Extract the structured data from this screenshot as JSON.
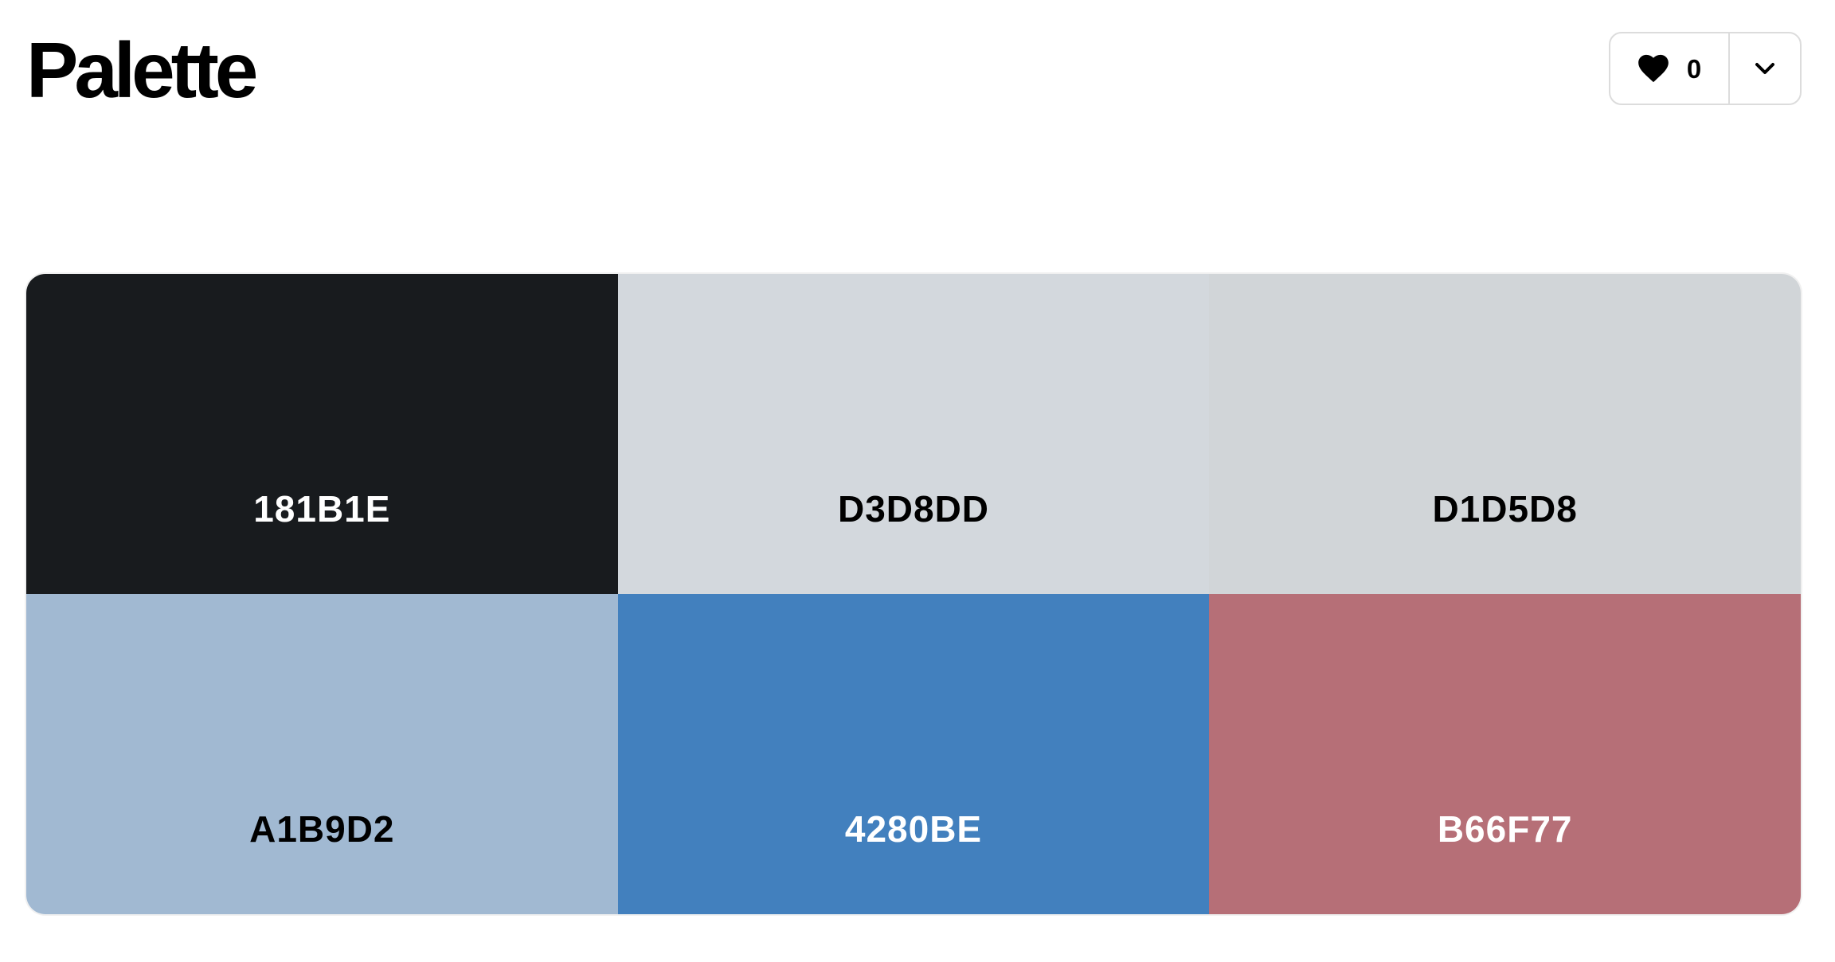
{
  "header": {
    "title": "Palette",
    "likes": {
      "count": "0",
      "icon": "heart-icon"
    },
    "menu": {
      "icon": "chevron-down-icon"
    }
  },
  "palette": {
    "swatches": [
      {
        "hex": "181B1E",
        "color": "#181B1E",
        "text_color": "#ffffff"
      },
      {
        "hex": "D3D8DD",
        "color": "#D3D8DD",
        "text_color": "#000000"
      },
      {
        "hex": "D1D5D8",
        "color": "#D1D5D8",
        "text_color": "#000000"
      },
      {
        "hex": "A1B9D2",
        "color": "#A1B9D2",
        "text_color": "#000000"
      },
      {
        "hex": "4280BE",
        "color": "#4280BE",
        "text_color": "#ffffff"
      },
      {
        "hex": "B66F77",
        "color": "#B66F77",
        "text_color": "#ffffff"
      }
    ]
  }
}
